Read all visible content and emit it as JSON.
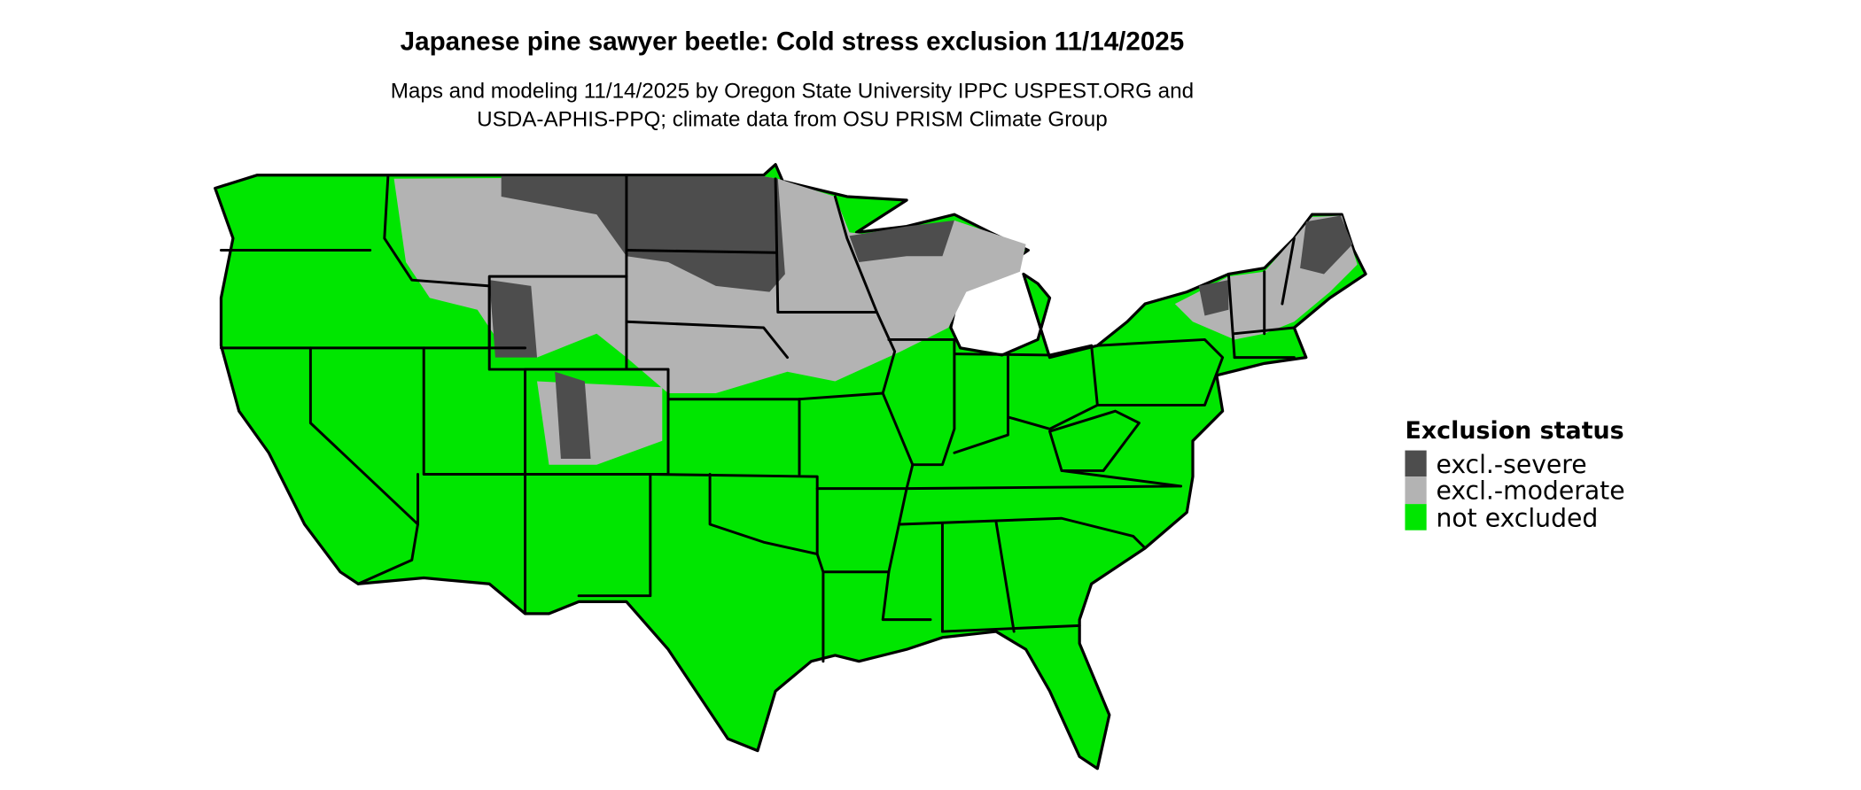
{
  "title": "Japanese pine sawyer beetle: Cold stress exclusion 11/14/2025",
  "subtitle_line1": "Maps and modeling 11/14/2025 by Oregon State University IPPC USPEST.ORG and",
  "subtitle_line2": "USDA-APHIS-PPQ; climate data from OSU PRISM Climate Group",
  "legend": {
    "title": "Exclusion status",
    "placement": "right",
    "items": [
      {
        "label": "excl.-severe",
        "color": "#4d4d4d"
      },
      {
        "label": "excl.-moderate",
        "color": "#b3b3b3"
      },
      {
        "label": "not excluded",
        "color": "#00e600"
      }
    ]
  },
  "map": {
    "region": "Contiguous United States",
    "state_borders": true
  }
}
